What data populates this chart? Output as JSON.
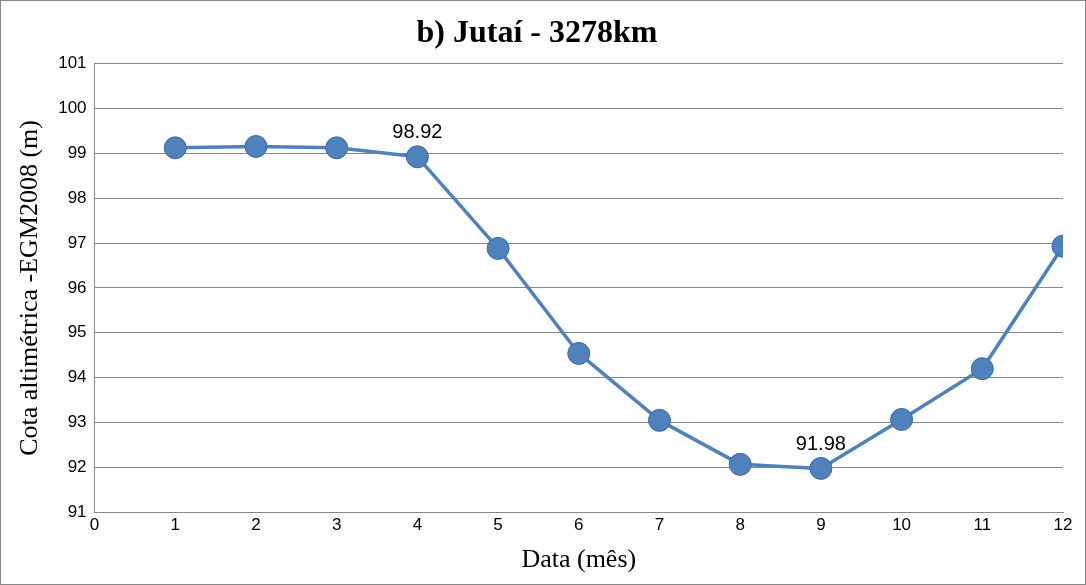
{
  "chart_data": {
    "type": "line",
    "title": "b) Jutaí - 3278km",
    "xlabel": "Data (mês)",
    "ylabel": "Cota altimétrica -EGM2008 (m)",
    "x": [
      1,
      2,
      3,
      4,
      5,
      6,
      7,
      8,
      9,
      10,
      11,
      12
    ],
    "series": [
      {
        "color": "#4f81bd",
        "values": [
          99.12,
          99.15,
          99.12,
          98.92,
          96.88,
          94.54,
          93.05,
          92.07,
          91.98,
          93.07,
          94.2,
          96.93
        ],
        "value_labels": [
          null,
          null,
          null,
          "98.92",
          null,
          null,
          null,
          null,
          "91.98",
          null,
          null,
          null
        ]
      }
    ],
    "xlim": [
      0,
      12
    ],
    "xticks": [
      0,
      1,
      2,
      3,
      4,
      5,
      6,
      7,
      8,
      9,
      10,
      11,
      12
    ],
    "ylim": [
      91,
      101
    ],
    "yticks": [
      91,
      92,
      93,
      94,
      95,
      96,
      97,
      98,
      99,
      100,
      101
    ],
    "grid": "y",
    "legend": false,
    "marker": "circle",
    "line_style": "solid"
  }
}
